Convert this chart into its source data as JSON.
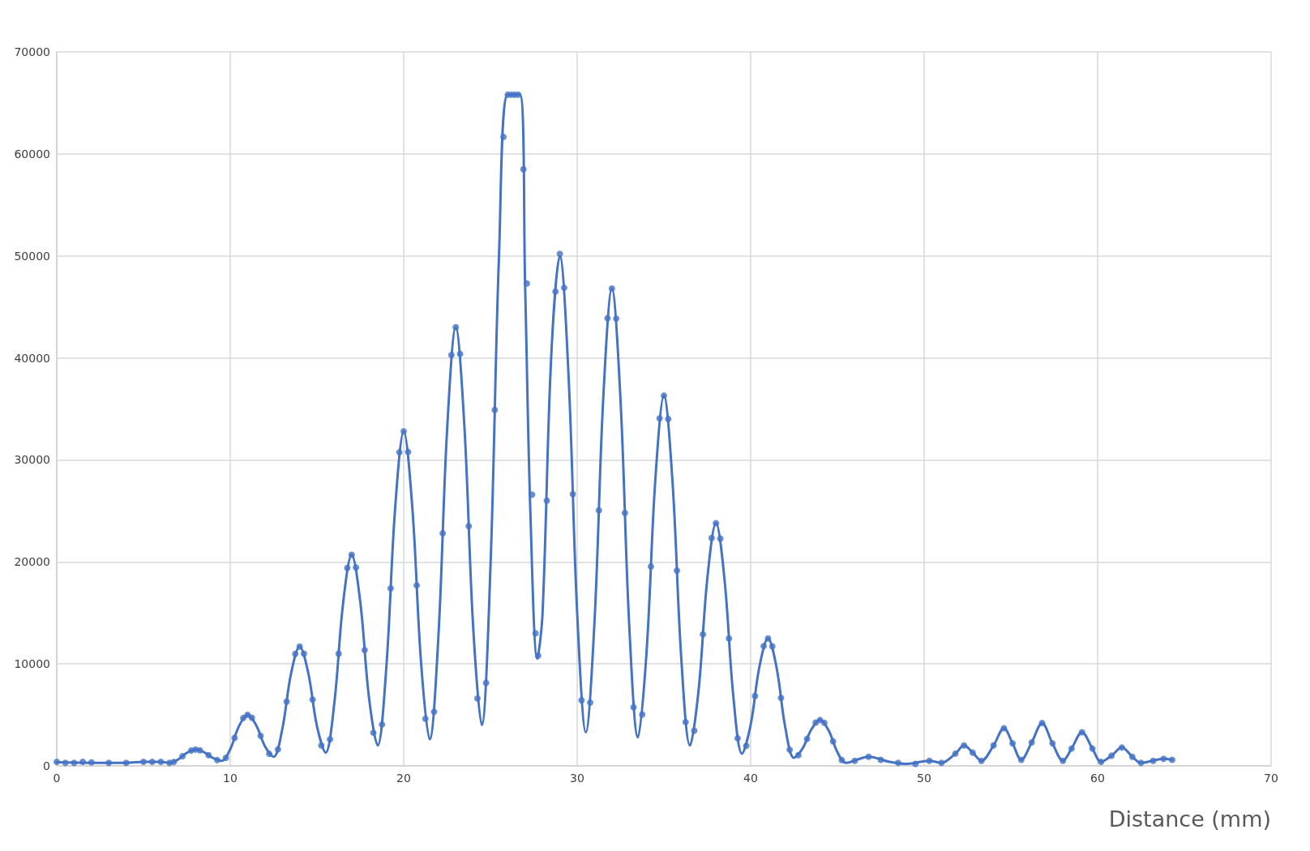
{
  "chart_data": {
    "type": "scatter",
    "xlabel": "Distance (mm)",
    "xlim": [
      0,
      70
    ],
    "xticks": [
      0,
      10,
      20,
      30,
      40,
      50,
      60,
      70
    ],
    "ylim": [
      0,
      70000
    ],
    "yticks": [
      0,
      10000,
      20000,
      30000,
      40000,
      50000,
      60000,
      70000
    ],
    "grid": true,
    "series": [
      {
        "marker": "circle",
        "color": "#4472c4",
        "x": [
          0,
          0.5,
          1,
          1.5,
          2,
          3,
          4,
          5,
          5.5,
          6,
          6.5,
          6.75,
          7.25,
          7.75,
          8.0,
          8.25,
          8.75,
          9.25,
          9.75,
          10.25,
          10.75,
          11,
          11.25,
          11.75,
          12.25,
          12.75,
          13.25,
          13.75,
          14,
          14.25,
          14.75,
          15.25,
          15.75,
          16.25,
          16.75,
          17,
          17.25,
          17.75,
          18.25,
          18.75,
          19.25,
          19.75,
          20,
          20.25,
          20.75,
          21.25,
          21.75,
          22.25,
          22.75,
          23,
          23.25,
          23.75,
          24.25,
          24.75,
          25.25,
          25.75,
          26.0,
          26.2,
          26.4,
          26.6,
          26.9,
          27.1,
          27.4,
          27.6,
          27.75,
          28.25,
          28.75,
          29.0,
          29.25,
          29.75,
          30.25,
          30.75,
          31.25,
          31.75,
          32,
          32.25,
          32.75,
          33.25,
          33.75,
          34.25,
          34.75,
          35,
          35.25,
          35.75,
          36.25,
          36.75,
          37.25,
          37.75,
          38,
          38.25,
          38.75,
          39.25,
          39.75,
          40.25,
          40.75,
          41,
          41.25,
          41.75,
          42.25,
          42.75,
          43.25,
          43.75,
          44,
          44.25,
          44.75,
          45.25,
          46,
          46.8,
          47.5,
          48.5,
          49.5,
          50.3,
          51,
          51.8,
          52.3,
          52.8,
          53.3,
          54.0,
          54.6,
          55.1,
          55.6,
          56.2,
          56.8,
          57.4,
          58.0,
          58.5,
          59.1,
          59.7,
          60.2,
          60.8,
          61.4,
          62,
          62.5,
          63.2,
          63.8,
          64.3
        ],
        "values": [
          400,
          300,
          300,
          400,
          350,
          300,
          300,
          400,
          400,
          400,
          300,
          390,
          950,
          1510,
          1600,
          1530,
          1050,
          570,
          800,
          2750,
          4700,
          5000,
          4730,
          2950,
          1180,
          1620,
          6300,
          10980,
          11700,
          11000,
          6500,
          2000,
          2600,
          11000,
          19400,
          20700,
          19450,
          11350,
          3250,
          4060,
          17400,
          30740,
          32800,
          30780,
          17700,
          4620,
          5310,
          22800,
          40290,
          43000,
          40390,
          23500,
          6610,
          8140,
          34900,
          61660,
          65800,
          65800,
          65800,
          65800,
          58500,
          47300,
          26600,
          13000,
          10800,
          26000,
          46500,
          50200,
          46870,
          26650,
          6430,
          6210,
          25050,
          43890,
          46800,
          43850,
          24800,
          5750,
          5050,
          19550,
          34060,
          36300,
          34000,
          19150,
          4300,
          3460,
          12900,
          22340,
          23800,
          22290,
          12500,
          2710,
          1960,
          6850,
          11740,
          12500,
          11720,
          6650,
          1580,
          1050,
          2650,
          4250,
          4500,
          4220,
          2400,
          580,
          500,
          900,
          600,
          300,
          200,
          500,
          300,
          1200,
          2000,
          1300,
          500,
          2000,
          3700,
          2200,
          600,
          2300,
          4200,
          2200,
          500,
          1700,
          3300,
          1700,
          400,
          1000,
          1800,
          900,
          300,
          500,
          700,
          600
        ]
      },
      {
        "type": "line",
        "marker": "none",
        "line_style": "solid",
        "color": "#4472c4",
        "x": [
          0,
          2,
          4,
          5,
          6,
          6.5,
          7.0,
          7.5,
          8.0,
          8.5,
          9.0,
          9.5,
          10.0,
          10.5,
          11,
          11.5,
          12,
          12.5,
          13,
          13.5,
          14,
          14.5,
          15,
          15.5,
          16,
          16.5,
          17,
          17.5,
          18,
          18.5,
          19,
          19.5,
          20,
          20.5,
          21,
          21.5,
          22,
          22.5,
          23,
          23.5,
          24,
          24.5,
          25.0,
          25.5,
          26.0,
          26.7,
          27.0,
          27.3,
          27.7,
          28.0,
          28.5,
          29,
          29.5,
          30,
          30.5,
          31,
          31.5,
          32,
          32.5,
          33,
          33.5,
          34,
          34.5,
          35,
          35.5,
          36,
          36.5,
          37,
          37.5,
          38,
          38.5,
          39,
          39.5,
          40,
          40.5,
          41,
          41.5,
          42,
          42.5,
          43,
          43.5,
          44,
          44.5,
          45,
          45.5,
          46.8,
          48,
          49,
          50.3,
          51,
          51.8,
          52.3,
          52.8,
          53.3,
          54.0,
          54.6,
          55.1,
          55.6,
          56.2,
          56.8,
          57.4,
          58.0,
          58.5,
          59.1,
          59.7,
          60.2,
          60.8,
          61.4,
          62.0,
          62.5,
          63.8,
          64.3
        ],
        "values": [
          350,
          300,
          300,
          400,
          400,
          300,
          630,
          1280,
          1600,
          1330,
          780,
          500,
          1630,
          3880,
          5000,
          3980,
          1930,
          900,
          3600,
          9000,
          11700,
          9100,
          3900,
          1300,
          6150,
          15850,
          20700,
          16030,
          6680,
          2000,
          9700,
          25100,
          32800,
          25250,
          10150,
          2600,
          12700,
          32900,
          43000,
          33250,
          13750,
          4000,
          19450,
          50350,
          65800,
          65800,
          47000,
          25000,
          10500,
          14850,
          40000,
          50000,
          38330,
          14980,
          3300,
          14180,
          35930,
          46800,
          35800,
          13800,
          2800,
          11180,
          27930,
          36300,
          27730,
          10580,
          2000,
          7450,
          18350,
          23800,
          18150,
          6850,
          1200,
          4030,
          9680,
          12500,
          9580,
          3730,
          800,
          1730,
          3580,
          4500,
          3450,
          1350,
          300,
          900,
          400,
          200,
          500,
          300,
          1200,
          2000,
          1300,
          500,
          2000,
          3700,
          2200,
          600,
          2300,
          4200,
          2200,
          500,
          1700,
          3300,
          1700,
          400,
          1000,
          1800,
          900,
          300,
          700,
          600
        ]
      }
    ]
  }
}
